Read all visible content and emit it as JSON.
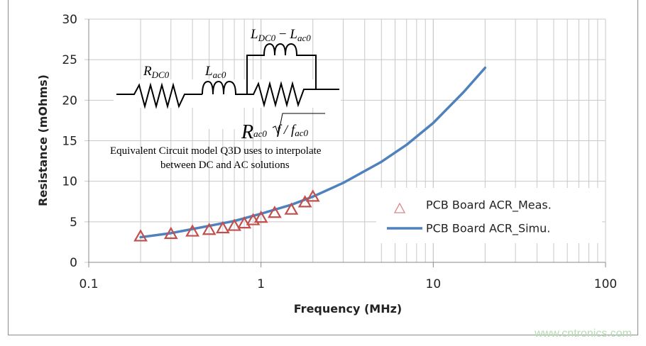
{
  "chart_data": {
    "type": "scatter+line",
    "title": "",
    "xlabel": "Frequency (MHz)",
    "ylabel": "Resistance (mOhms)",
    "xscale": "log",
    "xlim": [
      0.1,
      100
    ],
    "ylim": [
      0,
      30
    ],
    "xticks": [
      "0.1",
      "1",
      "10",
      "100"
    ],
    "yticks": [
      "0",
      "5",
      "10",
      "15",
      "20",
      "25",
      "30"
    ],
    "grid": true,
    "legend_position": "right",
    "series": [
      {
        "name": "PCB Board ACR_Meas.",
        "marker": "triangle-open",
        "color": "#c0504d",
        "x": [
          0.2,
          0.3,
          0.4,
          0.5,
          0.6,
          0.7,
          0.8,
          0.9,
          1.0,
          1.2,
          1.5,
          1.8,
          2.0
        ],
        "y": [
          3.2,
          3.5,
          3.8,
          4.0,
          4.2,
          4.5,
          4.8,
          5.2,
          5.5,
          6.1,
          6.5,
          7.4,
          8.1
        ]
      },
      {
        "name": "PCB Board ACR_Simu.",
        "marker": "line",
        "color": "#4f81bd",
        "x": [
          0.2,
          0.3,
          0.5,
          0.7,
          1,
          1.5,
          2,
          3,
          5,
          7,
          10,
          15,
          20
        ],
        "y": [
          3.1,
          3.6,
          4.5,
          5.1,
          6.0,
          7.1,
          8.1,
          9.8,
          12.4,
          14.5,
          17.2,
          21.0,
          24.0
        ]
      }
    ]
  },
  "annotation": {
    "r_dc0": {
      "main": "R",
      "sub": "DC0"
    },
    "l_ac0": {
      "main": "L",
      "sub": "ac0"
    },
    "l_dc0": {
      "main": "L",
      "sub": "DC0"
    },
    "minus": " − ",
    "l_ac0b": {
      "main": "L",
      "sub": "ac0"
    },
    "r_ac0": {
      "main": "R",
      "sub": "ac0"
    },
    "sqrt_f": "f / f",
    "sqrt_sub": "ac0",
    "caption_line1": "Equivalent Circuit model  Q3D uses to interpolate",
    "caption_line2": "between DC and AC solutions"
  },
  "watermark": "www.cntronics.com"
}
